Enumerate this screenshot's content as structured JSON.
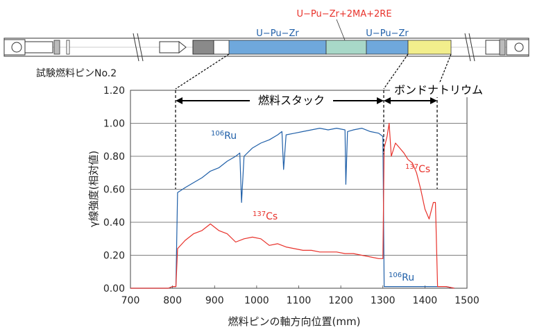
{
  "pin": {
    "label": "試験燃料ピンNo.2",
    "segments": [
      {
        "label": "U−Pu−Zr",
        "color": "#6fa8dc"
      },
      {
        "label": "U−Pu−Zr+2MA+2RE",
        "color": "#a8d8c8",
        "label_color": "#e8312a"
      },
      {
        "label": "U−Pu−Zr",
        "color": "#6fa8dc"
      },
      {
        "label": "",
        "color": "#f2ee8c"
      }
    ]
  },
  "chart_data": {
    "type": "line",
    "title": "",
    "xlabel": "燃料ピンの軸方向位置(mm)",
    "ylabel": "γ線強度(相対値)",
    "xlim": [
      700,
      1500
    ],
    "ylim": [
      0,
      1.2
    ],
    "xticks": [
      700,
      800,
      900,
      1000,
      1100,
      1200,
      1300,
      1400,
      1500
    ],
    "yticks": [
      0.0,
      0.2,
      0.4,
      0.6,
      0.8,
      1.0,
      1.2
    ],
    "xtick_labels": [
      "700",
      "800",
      "900",
      "1000",
      "1100",
      "1200",
      "1300",
      "1400",
      "1500"
    ],
    "ytick_labels": [
      "0.00",
      "0.20",
      "0.40",
      "0.60",
      "0.80",
      "1.00",
      "1.20"
    ],
    "grid": "horizontal",
    "series": [
      {
        "name": "106Ru",
        "color": "#1f5fa8",
        "x": [
          700,
          790,
          800,
          808,
          812,
          830,
          850,
          870,
          890,
          910,
          930,
          950,
          960,
          964,
          970,
          990,
          1010,
          1030,
          1050,
          1060,
          1064,
          1070,
          1090,
          1110,
          1130,
          1150,
          1170,
          1190,
          1210,
          1212,
          1216,
          1230,
          1250,
          1270,
          1290,
          1300,
          1303,
          1310,
          1350,
          1400,
          1450,
          1470
        ],
        "y": [
          0,
          0,
          0.01,
          0.01,
          0.58,
          0.61,
          0.64,
          0.67,
          0.71,
          0.73,
          0.77,
          0.8,
          0.82,
          0.52,
          0.8,
          0.85,
          0.88,
          0.9,
          0.93,
          0.95,
          0.72,
          0.93,
          0.94,
          0.95,
          0.96,
          0.97,
          0.96,
          0.97,
          0.96,
          0.63,
          0.95,
          0.96,
          0.97,
          0.95,
          0.94,
          0.92,
          0.01,
          0.01,
          0.01,
          0.01,
          0.01,
          0
        ]
      },
      {
        "name": "137Cs",
        "color": "#e8312a",
        "x": [
          700,
          790,
          800,
          808,
          812,
          830,
          850,
          870,
          890,
          910,
          930,
          950,
          970,
          990,
          1010,
          1030,
          1050,
          1070,
          1090,
          1110,
          1130,
          1150,
          1170,
          1190,
          1210,
          1230,
          1250,
          1270,
          1290,
          1300,
          1303,
          1310,
          1315,
          1320,
          1330,
          1340,
          1350,
          1360,
          1370,
          1380,
          1390,
          1400,
          1410,
          1420,
          1425,
          1430,
          1450,
          1470
        ],
        "y": [
          0,
          0,
          0.01,
          0.01,
          0.24,
          0.29,
          0.33,
          0.35,
          0.39,
          0.35,
          0.33,
          0.28,
          0.3,
          0.31,
          0.3,
          0.26,
          0.27,
          0.25,
          0.24,
          0.23,
          0.23,
          0.22,
          0.22,
          0.22,
          0.21,
          0.21,
          0.2,
          0.19,
          0.18,
          0.18,
          0.85,
          0.92,
          1.0,
          0.8,
          0.88,
          0.85,
          0.82,
          0.78,
          0.76,
          0.7,
          0.6,
          0.48,
          0.42,
          0.52,
          0.52,
          0.01,
          0.01,
          0
        ]
      }
    ],
    "annotations": {
      "fuel_stack": "燃料スタック",
      "bond_sodium": "ボンドナトリウム",
      "ru_label_main": "106Ru",
      "cs_label_main": "137Cs",
      "cs_label_bond": "137Cs",
      "ru_label_bond": "106Ru"
    }
  }
}
